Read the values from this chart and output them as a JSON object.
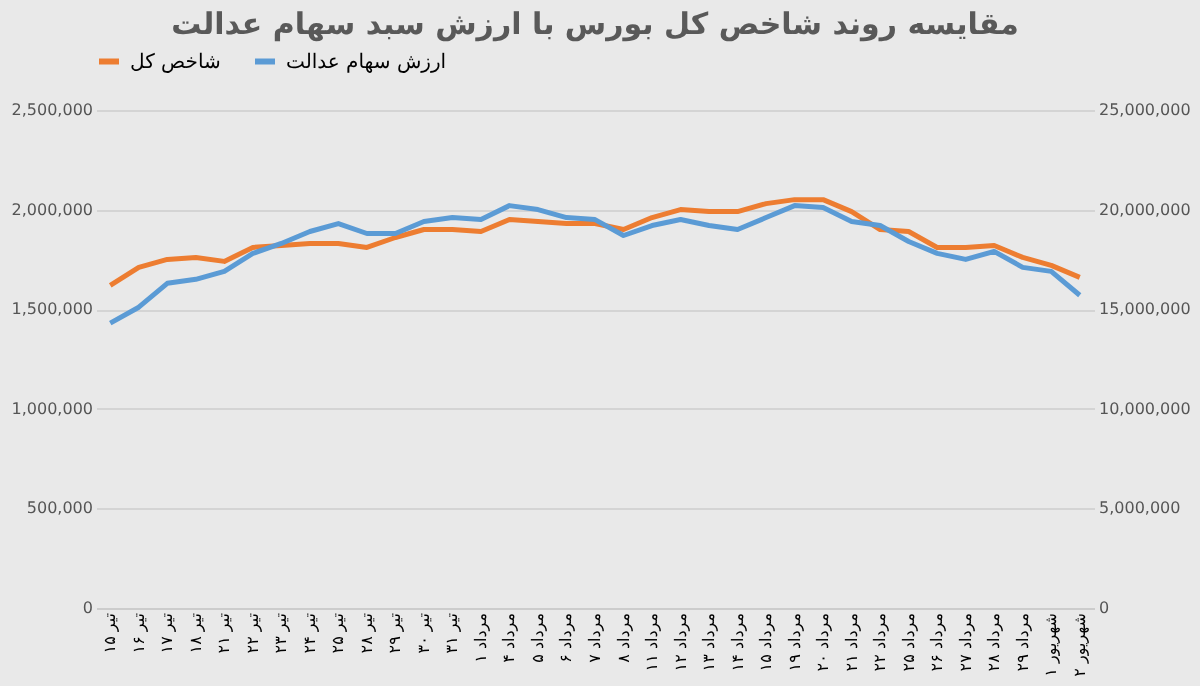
{
  "chart_data": {
    "type": "line",
    "title": "مقایسه روند شاخص کل بورس با ارزش سبد سهام عدالت",
    "categories": [
      "۱۵ تیر",
      "۱۶ تیر",
      "۱۷ تیر",
      "۱۸ تیر",
      "۲۱ تیر",
      "۲۲ تیر",
      "۲۳ تیر",
      "۲۴ تیر",
      "۲۵ تیر",
      "۲۸ تیر",
      "۲۹ تیر",
      "۳۰ تیر",
      "۳۱ تیر",
      "۱ مرداد",
      "۴ مرداد",
      "۵ مرداد",
      "۶ مرداد",
      "۷ مرداد",
      "۸ مرداد",
      "۱۱ مرداد",
      "۱۲ مرداد",
      "۱۳ مرداد",
      "۱۴ مرداد",
      "۱۵ مرداد",
      "۱۹ مرداد",
      "۲۰ مرداد",
      "۲۱ مرداد",
      "۲۲ مرداد",
      "۲۵ مرداد",
      "۲۶ مرداد",
      "۲۷ مرداد",
      "۲۸ مرداد",
      "۲۹ مرداد",
      "۱ شهریور",
      "۲ شهریور"
    ],
    "series": [
      {
        "name": "شاخص کل",
        "color": "#ed7d31",
        "values": [
          1620000,
          1710000,
          1750000,
          1760000,
          1740000,
          1810000,
          1820000,
          1830000,
          1830000,
          1810000,
          1860000,
          1900000,
          1900000,
          1890000,
          1950000,
          1940000,
          1930000,
          1930000,
          1900000,
          1960000,
          2000000,
          1990000,
          1990000,
          2030000,
          2050000,
          2050000,
          1990000,
          1900000,
          1890000,
          1810000,
          1810000,
          1820000,
          1760000,
          1720000,
          1660000
        ]
      },
      {
        "name": "ارزش سهام عدالت",
        "color": "#5b9bd5",
        "axis": "y2",
        "values": [
          14300000,
          15100000,
          16300000,
          16500000,
          16900000,
          17800000,
          18300000,
          18900000,
          19300000,
          18800000,
          18800000,
          19400000,
          19600000,
          19500000,
          20200000,
          20000000,
          19600000,
          19500000,
          18700000,
          19200000,
          19500000,
          19200000,
          19000000,
          19600000,
          20200000,
          20100000,
          19400000,
          19200000,
          18400000,
          17800000,
          17500000,
          17900000,
          17100000,
          16900000,
          15700000
        ]
      }
    ],
    "ylim": [
      0,
      2500000
    ],
    "yticks": [
      0,
      {
        "value": 500000,
        "label": "500,000"
      },
      {
        "value": 1000000,
        "label": "1,000,000"
      },
      {
        "value": 1500000,
        "label": "1,500,000"
      },
      {
        "value": 2000000,
        "label": "2,000,000"
      },
      {
        "value": 2500000,
        "label": "2,500,000"
      }
    ],
    "y2lim": [
      0,
      25000000
    ],
    "y2ticks": [
      0,
      {
        "value": 5000000,
        "label": "5,000,000"
      },
      {
        "value": 10000000,
        "label": "10,000,000"
      },
      {
        "value": 15000000,
        "label": "15,000,000"
      },
      {
        "value": 20000000,
        "label": "20,000,000"
      },
      {
        "value": 25000000,
        "label": "25,000,000"
      }
    ],
    "grid": "y",
    "legend": "top",
    "line_style": "solid"
  }
}
